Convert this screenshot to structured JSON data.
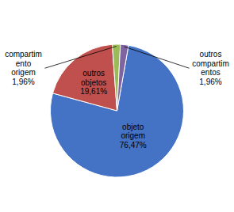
{
  "chart_data": {
    "type": "pie",
    "categories": [
      "objeto\norigem",
      "outros\nobjetos",
      "compartim\nento\norigem",
      "outros\ncompartim\nentos"
    ],
    "values": [
      76.47,
      19.61,
      1.96,
      1.96
    ],
    "value_labels": [
      "76,47%",
      "19,61%",
      "1,96%",
      "1,96%"
    ],
    "colors": [
      "#4472C4",
      "#C0504D",
      "#9BBB59",
      "#8064A2"
    ],
    "data_labels": true
  }
}
